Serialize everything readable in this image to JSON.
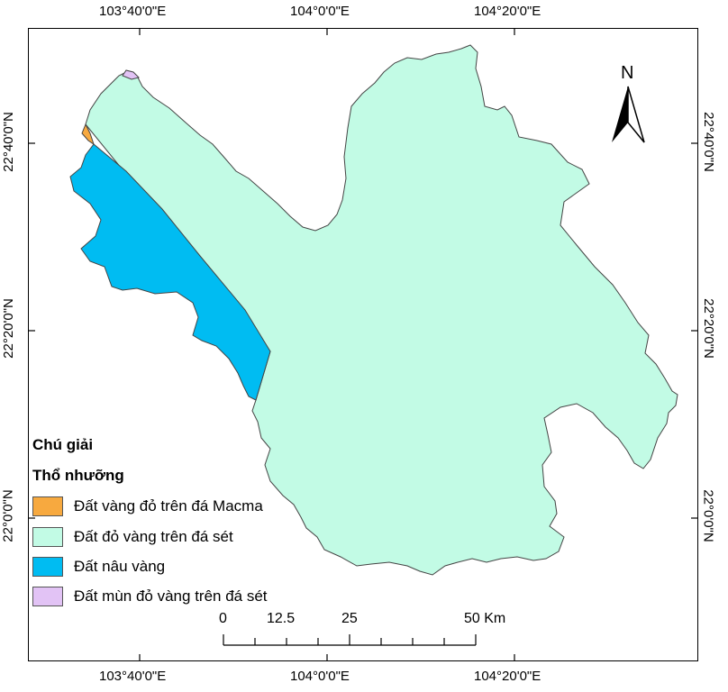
{
  "graticule": {
    "top": [
      "103°40'0\"E",
      "104°0'0\"E",
      "104°20'0\"E"
    ],
    "bottom": [
      "103°40'0\"E",
      "104°0'0\"E",
      "104°20'0\"E"
    ],
    "left": [
      "22°40'0\"N",
      "22°20'0\"N",
      "22°0'0\"N"
    ],
    "right": [
      "22°40'0\"N",
      "22°20'0\"N",
      "22°0'0\"N"
    ]
  },
  "north_arrow": {
    "label": "N",
    "icon": "north-arrow-icon"
  },
  "legend": {
    "title": "Chú giải",
    "subtitle": "Thổ nhưỡng",
    "items": [
      {
        "label": "Đất vàng đỏ trên đá Macma",
        "color": "#f7a93f"
      },
      {
        "label": "Đất đỏ vàng trên đá sét",
        "color": "#c2fbe5"
      },
      {
        "label": "Đất nâu vàng",
        "color": "#00bcf2"
      },
      {
        "label": "Đất mùn đỏ vàng trên đá sét",
        "color": "#e2c3f5"
      }
    ]
  },
  "scale_bar": {
    "labels": [
      "0",
      "12.5",
      "25",
      "50 Km"
    ]
  }
}
